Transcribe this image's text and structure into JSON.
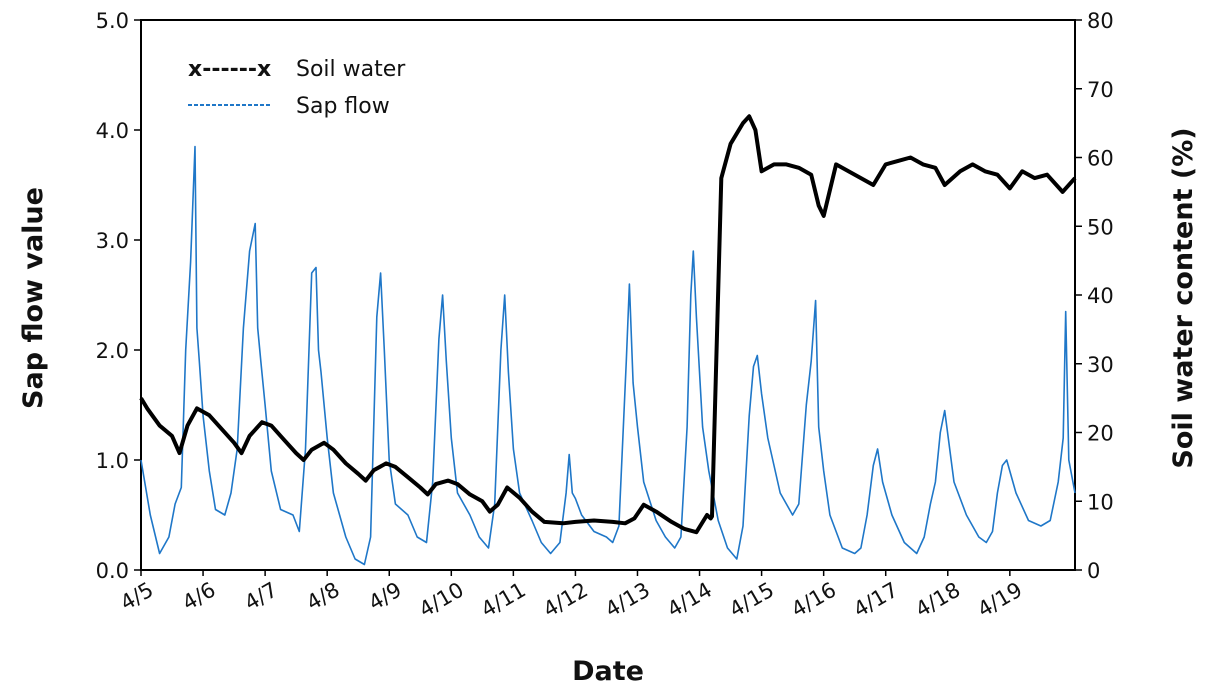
{
  "chart_data": {
    "type": "line",
    "xlabel": "Date",
    "ylabel_left": "Sap flow value",
    "ylabel_right": "Soil water content (%)",
    "ylim_left": [
      0,
      5
    ],
    "ylim_right": [
      0,
      80
    ],
    "left_ticks": [
      "0.0",
      "1.0",
      "2.0",
      "3.0",
      "4.0",
      "5.0"
    ],
    "right_ticks": [
      "0",
      "10",
      "20",
      "30",
      "40",
      "50",
      "60",
      "70",
      "80"
    ],
    "x_ticks": [
      "4/5",
      "4/6",
      "4/7",
      "4/8",
      "4/9",
      "4/10",
      "4/11",
      "4/12",
      "4/13",
      "4/14",
      "4/15",
      "4/16",
      "4/17",
      "4/18",
      "4/19"
    ],
    "xlim_days": [
      5,
      20.05
    ],
    "grid": false,
    "legend": {
      "position": "top-left",
      "entries": [
        {
          "label": "Soil water",
          "marker_text": "x------x",
          "color": "#000000"
        },
        {
          "label": "Sap flow",
          "color": "#1f77c8"
        }
      ]
    },
    "series": [
      {
        "name": "Soil water",
        "axis": "right",
        "color": "#000000",
        "x_days": [
          5.0,
          5.1,
          5.3,
          5.5,
          5.62,
          5.75,
          5.9,
          6.1,
          6.3,
          6.5,
          6.62,
          6.75,
          6.95,
          7.1,
          7.3,
          7.5,
          7.62,
          7.75,
          7.95,
          8.1,
          8.3,
          8.5,
          8.62,
          8.75,
          8.95,
          9.1,
          9.3,
          9.5,
          9.62,
          9.75,
          9.95,
          10.1,
          10.3,
          10.5,
          10.62,
          10.75,
          10.9,
          11.1,
          11.3,
          11.5,
          11.8,
          12.0,
          12.3,
          12.6,
          12.8,
          12.95,
          13.1,
          13.3,
          13.55,
          13.75,
          13.95,
          14.12,
          14.18,
          14.2,
          14.35,
          14.5,
          14.7,
          14.8,
          14.9,
          15.0,
          15.2,
          15.4,
          15.6,
          15.8,
          15.92,
          16.0,
          16.2,
          16.4,
          16.6,
          16.8,
          17.0,
          17.2,
          17.4,
          17.6,
          17.8,
          17.95,
          18.2,
          18.4,
          18.6,
          18.8,
          19.0,
          19.2,
          19.4,
          19.6,
          19.85,
          20.05
        ],
        "values": [
          25,
          23.5,
          21,
          19.5,
          17,
          21,
          23.5,
          22.5,
          20.5,
          18.5,
          17,
          19.5,
          21.5,
          21,
          19,
          17,
          16,
          17.5,
          18.5,
          17.5,
          15.5,
          14,
          13,
          14.5,
          15.5,
          15,
          13.5,
          12,
          11,
          12.5,
          13,
          12.5,
          11,
          10,
          8.5,
          9.5,
          12,
          10.5,
          8.5,
          7,
          6.8,
          7,
          7.2,
          7,
          6.8,
          7.5,
          9.5,
          8.5,
          7,
          6,
          5.5,
          8,
          7.5,
          7.8,
          57,
          62,
          65,
          66,
          64,
          58,
          59,
          59,
          58.5,
          57.5,
          53,
          51.5,
          59,
          58,
          57,
          56,
          59,
          59.5,
          60,
          59,
          58.5,
          56,
          58,
          59,
          58,
          57.5,
          55.5,
          58,
          57,
          57.5,
          55,
          57
        ]
      },
      {
        "name": "Sap flow",
        "axis": "left",
        "color": "#1f77c8",
        "x_days": [
          5.0,
          5.15,
          5.3,
          5.45,
          5.55,
          5.65,
          5.72,
          5.8,
          5.87,
          5.9,
          5.94,
          6.0,
          6.1,
          6.2,
          6.35,
          6.45,
          6.55,
          6.65,
          6.75,
          6.84,
          6.88,
          6.93,
          7.0,
          7.1,
          7.25,
          7.45,
          7.55,
          7.65,
          7.75,
          7.82,
          7.86,
          7.9,
          8.0,
          8.1,
          8.3,
          8.45,
          8.6,
          8.7,
          8.8,
          8.86,
          8.92,
          9.0,
          9.1,
          9.3,
          9.45,
          9.6,
          9.7,
          9.8,
          9.86,
          9.92,
          10.0,
          10.1,
          10.3,
          10.45,
          10.6,
          10.7,
          10.8,
          10.86,
          10.92,
          11.0,
          11.1,
          11.3,
          11.45,
          11.6,
          11.75,
          11.85,
          11.9,
          11.95,
          12.0,
          12.1,
          12.3,
          12.5,
          12.6,
          12.7,
          12.82,
          12.87,
          12.93,
          13.0,
          13.1,
          13.3,
          13.45,
          13.6,
          13.7,
          13.8,
          13.86,
          13.9,
          13.95,
          14.0,
          14.05,
          14.15,
          14.3,
          14.45,
          14.6,
          14.7,
          14.8,
          14.87,
          14.93,
          15.0,
          15.1,
          15.3,
          15.5,
          15.6,
          15.72,
          15.8,
          15.87,
          15.92,
          16.0,
          16.1,
          16.3,
          16.5,
          16.6,
          16.7,
          16.8,
          16.87,
          16.95,
          17.1,
          17.3,
          17.5,
          17.62,
          17.72,
          17.8,
          17.88,
          17.95,
          18.1,
          18.3,
          18.5,
          18.62,
          18.72,
          18.8,
          18.88,
          18.95,
          19.1,
          19.3,
          19.5,
          19.65,
          19.78,
          19.86,
          19.9,
          19.95,
          20.05
        ],
        "values": [
          1.0,
          0.5,
          0.15,
          0.3,
          0.6,
          0.75,
          2.0,
          2.8,
          3.85,
          2.2,
          1.9,
          1.4,
          0.9,
          0.55,
          0.5,
          0.7,
          1.1,
          2.2,
          2.9,
          3.15,
          2.2,
          1.9,
          1.5,
          0.9,
          0.55,
          0.5,
          0.35,
          1.1,
          2.7,
          2.75,
          2.0,
          1.8,
          1.2,
          0.7,
          0.3,
          0.1,
          0.05,
          0.3,
          2.3,
          2.7,
          2.0,
          1.0,
          0.6,
          0.5,
          0.3,
          0.25,
          0.8,
          2.1,
          2.5,
          1.9,
          1.2,
          0.7,
          0.5,
          0.3,
          0.2,
          0.6,
          2.0,
          2.5,
          1.8,
          1.1,
          0.7,
          0.45,
          0.25,
          0.15,
          0.25,
          0.7,
          1.05,
          0.7,
          0.65,
          0.5,
          0.35,
          0.3,
          0.25,
          0.4,
          1.9,
          2.6,
          1.7,
          1.3,
          0.8,
          0.45,
          0.3,
          0.2,
          0.3,
          1.3,
          2.5,
          2.9,
          2.3,
          1.8,
          1.3,
          0.9,
          0.45,
          0.2,
          0.1,
          0.4,
          1.4,
          1.85,
          1.95,
          1.6,
          1.2,
          0.7,
          0.5,
          0.6,
          1.5,
          1.9,
          2.45,
          1.3,
          0.9,
          0.5,
          0.2,
          0.15,
          0.2,
          0.5,
          0.95,
          1.1,
          0.8,
          0.5,
          0.25,
          0.15,
          0.3,
          0.6,
          0.8,
          1.25,
          1.45,
          0.8,
          0.5,
          0.3,
          0.25,
          0.35,
          0.7,
          0.95,
          1.0,
          0.7,
          0.45,
          0.4,
          0.45,
          0.8,
          1.2,
          2.35,
          1.0,
          0.7
        ]
      }
    ]
  }
}
